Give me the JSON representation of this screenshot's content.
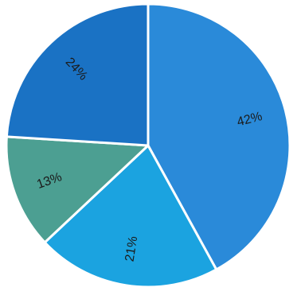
{
  "chart_data": {
    "type": "pie",
    "start_angle_deg": 0,
    "direction": "clockwise",
    "label_orientation": "radial",
    "slices": [
      {
        "label": "42%",
        "value": 42,
        "color": "#2a8ad9"
      },
      {
        "label": "21%",
        "value": 21,
        "color": "#1ba3e0"
      },
      {
        "label": "13%",
        "value": 13,
        "color": "#4c9f92"
      },
      {
        "label": "24%",
        "value": 24,
        "color": "#1a72c4"
      }
    ]
  }
}
